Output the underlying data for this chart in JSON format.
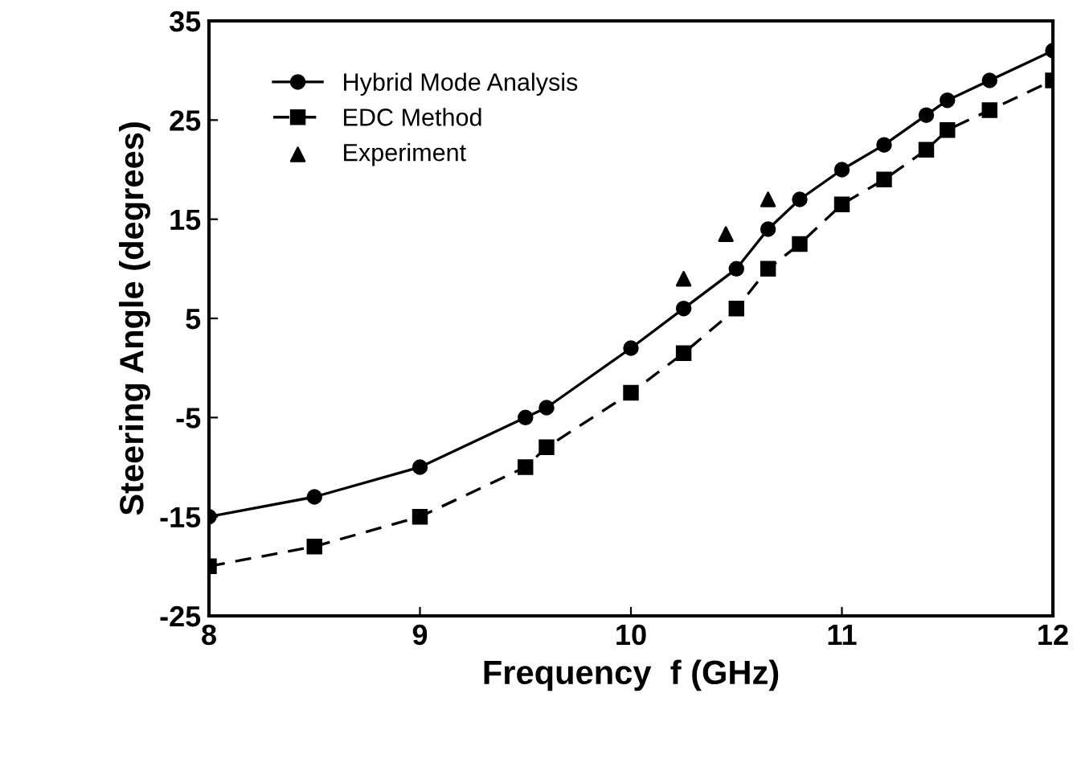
{
  "chart_data": {
    "type": "line",
    "xlabel": "Frequency  f (GHz)",
    "ylabel": "Steering Angle (degrees)",
    "xlim": [
      8,
      12
    ],
    "xticks": [
      8,
      9,
      10,
      11,
      12
    ],
    "ylim": [
      -25,
      35
    ],
    "yticks": [
      -25,
      -15,
      -5,
      5,
      15,
      25,
      35
    ],
    "grid": false,
    "legend": "top left",
    "series": [
      {
        "name": "Hybrid Mode Analysis",
        "color": "#000000",
        "marker": "circle",
        "line_style": "solid",
        "x": [
          8,
          8.5,
          9,
          9.5,
          9.6,
          10,
          10.25,
          10.5,
          10.65,
          10.8,
          11,
          11.2,
          11.4,
          11.5,
          11.7,
          12
        ],
        "values": [
          -15,
          -13,
          -10,
          -5,
          -4,
          2,
          6,
          10,
          14,
          17,
          20,
          22.5,
          25.5,
          27,
          29,
          32
        ]
      },
      {
        "name": "EDC Method",
        "color": "#000000",
        "marker": "square",
        "line_style": "dashed",
        "x": [
          8,
          8.5,
          9,
          9.5,
          9.6,
          10,
          10.25,
          10.5,
          10.65,
          10.8,
          11,
          11.2,
          11.4,
          11.5,
          11.7,
          12
        ],
        "values": [
          -20,
          -18,
          -15,
          -10,
          -8,
          -2.5,
          1.5,
          6,
          10,
          12.5,
          16.5,
          19,
          22,
          24,
          26,
          29
        ]
      },
      {
        "name": "Experiment",
        "type": "scatter",
        "color": "#000000",
        "marker": "triangle",
        "x": [
          10.25,
          10.45,
          10.65
        ],
        "values": [
          9,
          13.5,
          17
        ]
      }
    ]
  }
}
